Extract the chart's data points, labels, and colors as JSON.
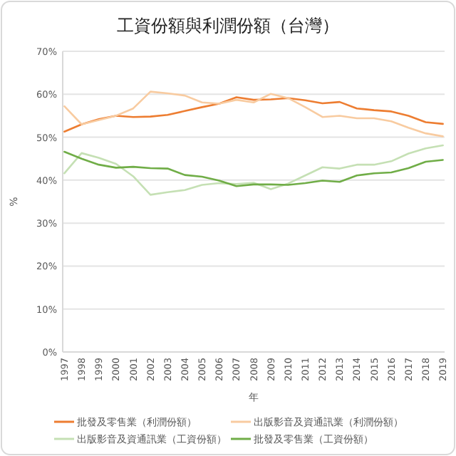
{
  "chart_data": {
    "type": "line",
    "title": "工資份額與利潤份額（台灣）",
    "xlabel": "年",
    "ylabel": "%",
    "categories": [
      "1997",
      "1998",
      "1999",
      "2000",
      "2001",
      "2002",
      "2003",
      "2004",
      "2005",
      "2006",
      "2007",
      "2008",
      "2009",
      "2010",
      "2011",
      "2012",
      "2013",
      "2014",
      "2015",
      "2016",
      "2017",
      "2018",
      "2019"
    ],
    "series": [
      {
        "name": "批發及零售業（利潤份額）",
        "color": "#ed7d31",
        "values": [
          51.3,
          53,
          54.2,
          55,
          54.7,
          54.8,
          55.2,
          56.1,
          57,
          57.8,
          59.3,
          58.7,
          58.8,
          59.1,
          58.6,
          57.9,
          58.2,
          56.7,
          56.3,
          56,
          55,
          53.5,
          53.1
        ]
      },
      {
        "name": "出版影音及資通訊業（利潤份額）",
        "color": "#f8cba0",
        "values": [
          57.2,
          53,
          54,
          55,
          56.7,
          60.6,
          60.2,
          59.7,
          58.1,
          57.8,
          58.7,
          58.1,
          60.1,
          59.1,
          57,
          54.7,
          55,
          54.4,
          54.4,
          53.7,
          52.2,
          50.9,
          50.2
        ]
      },
      {
        "name": "出版影音及資通訊業（工資份額）",
        "color": "#c5e0b4",
        "values": [
          41.6,
          46.3,
          45.2,
          43.8,
          40.9,
          36.6,
          37.2,
          37.7,
          38.9,
          39.3,
          39.1,
          39.4,
          37.9,
          39.2,
          41.1,
          43,
          42.7,
          43.6,
          43.6,
          44.4,
          46.2,
          47.4,
          48.1
        ]
      },
      {
        "name": "批發及零售業（工資份額）",
        "color": "#70ad47",
        "values": [
          46.6,
          45,
          43.6,
          42.9,
          43.1,
          42.8,
          42.7,
          41.2,
          40.8,
          39.9,
          38.6,
          39,
          39,
          38.9,
          39.3,
          39.9,
          39.6,
          41.1,
          41.6,
          41.8,
          42.8,
          44.3,
          44.7
        ]
      }
    ],
    "ylim": [
      0,
      70
    ],
    "yticks": [
      {
        "value": 0,
        "label": "0%"
      },
      {
        "value": 10,
        "label": "10%"
      },
      {
        "value": 20,
        "label": "20%"
      },
      {
        "value": 30,
        "label": "30%"
      },
      {
        "value": 40,
        "label": "40%"
      },
      {
        "value": 50,
        "label": "50%"
      },
      {
        "value": 60,
        "label": "60%"
      },
      {
        "value": 70,
        "label": "70%"
      }
    ],
    "grid": "y",
    "legend": "bottom",
    "marker": "none",
    "line_style": "solid"
  }
}
